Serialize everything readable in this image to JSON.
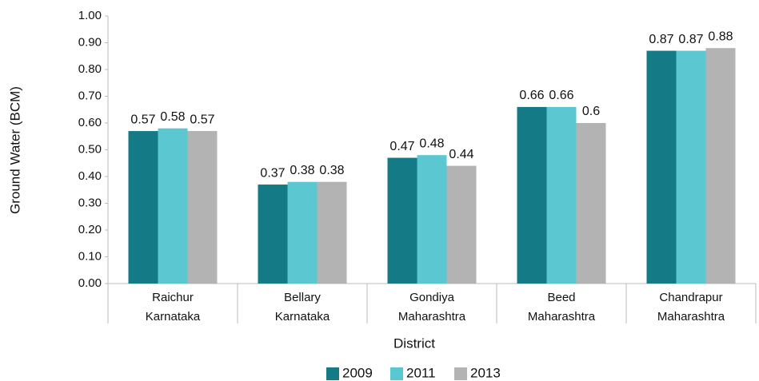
{
  "chart_data": {
    "type": "bar",
    "x_label": "District",
    "y_label": "Ground Water (BCM)",
    "categories": [
      [
        "Raichur",
        "Karnataka"
      ],
      [
        "Bellary",
        "Karnataka"
      ],
      [
        "Gondiya",
        "Maharashtra"
      ],
      [
        "Beed",
        "Maharashtra"
      ],
      [
        "Chandrapur",
        "Maharashtra"
      ]
    ],
    "series": [
      {
        "name": "2009",
        "color": "#147a85",
        "values": [
          0.57,
          0.37,
          0.47,
          0.66,
          0.87
        ]
      },
      {
        "name": "2011",
        "color": "#5bc8d1",
        "values": [
          0.58,
          0.38,
          0.48,
          0.66,
          0.87
        ]
      },
      {
        "name": "2013",
        "color": "#b3b3b3",
        "values": [
          0.57,
          0.38,
          0.44,
          0.6,
          0.88
        ]
      }
    ],
    "ylim": [
      0,
      1
    ],
    "yticks": [
      {
        "value": 0,
        "label": "0.00"
      },
      {
        "value": 0.1,
        "label": "0.10"
      },
      {
        "value": 0.2,
        "label": "0.20"
      },
      {
        "value": 0.3,
        "label": "0.30"
      },
      {
        "value": 0.4,
        "label": "0.40"
      },
      {
        "value": 0.5,
        "label": "0.50"
      },
      {
        "value": 0.6,
        "label": "0.60"
      },
      {
        "value": 0.7,
        "label": "0.70"
      },
      {
        "value": 0.8,
        "label": "0.80"
      },
      {
        "value": 0.9,
        "label": "0.90"
      },
      {
        "value": 1,
        "label": "1.00"
      }
    ],
    "legend": "bottom"
  }
}
